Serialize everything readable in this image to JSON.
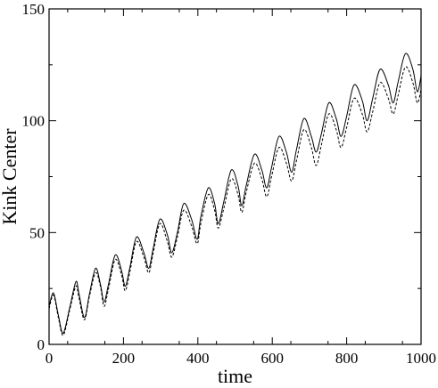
{
  "chart_data": {
    "type": "line",
    "xlabel": "time",
    "ylabel": "Kink Center",
    "xlim": [
      0,
      1000
    ],
    "ylim": [
      0,
      150
    ],
    "x_ticks": [
      0,
      200,
      400,
      600,
      800,
      1000
    ],
    "y_ticks": [
      0,
      50,
      100,
      150
    ],
    "x_tick_labels": [
      "0",
      "200",
      "400",
      "600",
      "800",
      "1000"
    ],
    "y_tick_labels": [
      "0",
      "50",
      "100",
      "150"
    ],
    "grid": false,
    "series": [
      {
        "style": "solid",
        "color": "#000000",
        "x": [
          0,
          12,
          25,
          38,
          55,
          72,
          80,
          95,
          108,
          125,
          138,
          148,
          160,
          178,
          195,
          205,
          218,
          235,
          255,
          268,
          280,
          298,
          318,
          330,
          345,
          362,
          383,
          398,
          408,
          428,
          445,
          455,
          470,
          490,
          508,
          518,
          530,
          552,
          572,
          585,
          598,
          618,
          638,
          652,
          665,
          685,
          705,
          718,
          732,
          752,
          772,
          785,
          800,
          820,
          842,
          855,
          870,
          890,
          912,
          925,
          938,
          958,
          978,
          990,
          1000
        ],
        "y": [
          17,
          23,
          13,
          5,
          16,
          28,
          23,
          12,
          22,
          34,
          27,
          19,
          27,
          40,
          33,
          26,
          35,
          48,
          41,
          34,
          43,
          56,
          49,
          41,
          50,
          63,
          56,
          47,
          57,
          70,
          63,
          54,
          64,
          78,
          71,
          62,
          71,
          85,
          78,
          70,
          79,
          93,
          86,
          77,
          87,
          101,
          93,
          86,
          94,
          108,
          101,
          93,
          102,
          116,
          109,
          100,
          110,
          123,
          116,
          108,
          117,
          130,
          123,
          113,
          120
        ]
      },
      {
        "style": "dashed",
        "color": "#000000",
        "x": [
          0,
          12,
          25,
          38,
          55,
          72,
          80,
          95,
          108,
          125,
          138,
          148,
          160,
          178,
          195,
          205,
          218,
          235,
          255,
          268,
          280,
          298,
          318,
          330,
          345,
          362,
          383,
          398,
          408,
          428,
          445,
          455,
          470,
          490,
          508,
          518,
          530,
          552,
          572,
          585,
          598,
          618,
          638,
          652,
          665,
          685,
          705,
          718,
          732,
          752,
          772,
          785,
          800,
          820,
          842,
          855,
          870,
          890,
          912,
          925,
          938,
          958,
          978,
          990,
          1000
        ],
        "y": [
          16,
          22,
          12,
          4,
          15,
          26,
          21,
          11,
          21,
          32,
          26,
          17,
          25,
          38,
          31,
          24,
          33,
          46,
          39,
          32,
          41,
          54,
          46,
          39,
          48,
          60,
          53,
          45,
          54,
          67,
          60,
          52,
          61,
          74,
          67,
          59,
          68,
          81,
          74,
          66,
          75,
          88,
          81,
          73,
          82,
          96,
          88,
          80,
          89,
          103,
          96,
          88,
          97,
          110,
          103,
          95,
          104,
          117,
          110,
          103,
          111,
          124,
          117,
          108,
          114
        ]
      }
    ]
  }
}
